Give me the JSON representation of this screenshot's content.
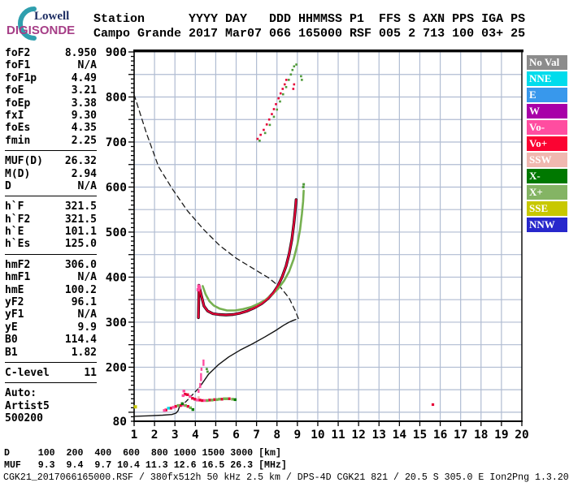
{
  "logo": {
    "top": "Lowell",
    "bottom": "DIGISONDE",
    "arc_color": "#2f9fae"
  },
  "header": {
    "line1": "Station      YYYY DAY   DDD HHMMSS P1  FFS S AXN PPS IGA PS",
    "line2": "Campo Grande 2017 Mar07 066 165000 RSF 005 2 713 100 03+ 25"
  },
  "sidebar": {
    "groups": [
      {
        "rows": [
          {
            "label": "foF2",
            "value": "8.950"
          },
          {
            "label": "foF1",
            "value": "N/A"
          },
          {
            "label": "foF1p",
            "value": "4.49"
          },
          {
            "label": "foE",
            "value": "3.21"
          },
          {
            "label": "foEp",
            "value": "3.38"
          },
          {
            "label": "fxI",
            "value": "9.30"
          },
          {
            "label": "foEs",
            "value": "4.35"
          },
          {
            "label": "fmin",
            "value": "2.25"
          }
        ]
      },
      {
        "rows": [
          {
            "label": "MUF(D)",
            "value": "26.32"
          },
          {
            "label": "M(D)",
            "value": "2.94"
          },
          {
            "label": "D",
            "value": "N/A"
          }
        ]
      },
      {
        "rows": [
          {
            "label": "h`F",
            "value": "321.5"
          },
          {
            "label": "h`F2",
            "value": "321.5"
          },
          {
            "label": "h`E",
            "value": "101.1"
          },
          {
            "label": "h`Es",
            "value": "125.0"
          }
        ]
      },
      {
        "rows": [
          {
            "label": "hmF2",
            "value": "306.0"
          },
          {
            "label": "hmF1",
            "value": "N/A"
          },
          {
            "label": "hmE",
            "value": "100.2"
          },
          {
            "label": "yF2",
            "value": "96.1"
          },
          {
            "label": "yF1",
            "value": "N/A"
          },
          {
            "label": "yE",
            "value": "9.9"
          },
          {
            "label": "B0",
            "value": "114.4"
          },
          {
            "label": "B1",
            "value": "1.82"
          }
        ]
      },
      {
        "rows": [
          {
            "label": "C-level",
            "value": "11"
          }
        ]
      }
    ],
    "footer_lines": [
      "Auto:",
      "Artist5",
      "500200"
    ]
  },
  "legend": {
    "items": [
      {
        "label": "No Val",
        "color": "#8c8c8c"
      },
      {
        "label": "NNE",
        "color": "#00dcec"
      },
      {
        "label": "E",
        "color": "#3898ec"
      },
      {
        "label": "W",
        "color": "#a800a8"
      },
      {
        "label": "Vo-",
        "color": "#ff4da0"
      },
      {
        "label": "Vo+",
        "color": "#fb0332"
      },
      {
        "label": "SSW",
        "color": "#f0b8b0"
      },
      {
        "label": "X-",
        "color": "#007800"
      },
      {
        "label": "X+",
        "color": "#84b464"
      },
      {
        "label": "SSE",
        "color": "#c8c800"
      },
      {
        "label": "NNW",
        "color": "#2828cc"
      }
    ]
  },
  "footer": {
    "d_label": "D",
    "muf_label": "MUF",
    "distances_km": [
      100,
      200,
      400,
      600,
      800,
      1000,
      1500,
      3000
    ],
    "d_unit": "[km]",
    "muf_values_mhz": [
      9.3,
      9.4,
      9.7,
      10.4,
      11.3,
      12.6,
      16.5,
      26.3
    ],
    "muf_unit": "[MHz]",
    "file_line": "CGK21_2017066165000.RSF / 380fx512h 50 kHz 2.5 km / DPS-4D CGK21 821 / 20.5 S 305.0 E Ion2Png 1.3.20"
  },
  "chart_data": {
    "type": "scatter",
    "title": "Digisonde ionogram: virtual height vs frequency",
    "xlabel": "[MHz]",
    "ylabel": "[km]",
    "xlim": [
      1,
      20
    ],
    "ylim": [
      80,
      900
    ],
    "x_ticks": [
      1,
      2,
      3,
      4,
      5,
      6,
      7,
      8,
      9,
      10,
      11,
      12,
      13,
      14,
      15,
      16,
      17,
      18,
      19,
      20
    ],
    "y_major_labels": [
      900,
      800,
      700,
      600,
      500,
      400,
      300,
      200,
      80
    ],
    "y_minor_step": 10,
    "grid": {
      "x_step_mhz": 1,
      "y_step_km": 50,
      "color": "#b0bcd2"
    },
    "series": [
      {
        "name": "muf-transmission-curve",
        "type": "line",
        "color": "#1a1a1a",
        "width": 1.3,
        "dash": "6,4.5",
        "points": [
          [
            1.0,
            805
          ],
          [
            1.6,
            720
          ],
          [
            2.2,
            645
          ],
          [
            2.9,
            594
          ],
          [
            3.6,
            548
          ],
          [
            4.4,
            506
          ],
          [
            5.2,
            470
          ],
          [
            6.0,
            442
          ],
          [
            6.8,
            420
          ],
          [
            7.6,
            398
          ],
          [
            8.2,
            376
          ],
          [
            8.6,
            353
          ],
          [
            8.9,
            325
          ],
          [
            9.05,
            308
          ]
        ]
      },
      {
        "name": "profile-e-region",
        "type": "line",
        "color": "#111",
        "width": 1.4,
        "points": [
          [
            1.0,
            91
          ],
          [
            1.7,
            92
          ],
          [
            2.4,
            93.5
          ],
          [
            2.85,
            95
          ],
          [
            3.05,
            98
          ],
          [
            3.15,
            103
          ],
          [
            3.22,
            112
          ]
        ]
      },
      {
        "name": "profile-valley-dashed",
        "type": "line",
        "color": "#111",
        "width": 1.3,
        "dash": "5,4",
        "points": [
          [
            3.22,
            112
          ],
          [
            3.55,
            124
          ],
          [
            3.9,
            141
          ],
          [
            4.2,
            155
          ]
        ]
      },
      {
        "name": "profile-f-region",
        "type": "line",
        "color": "#111",
        "width": 1.4,
        "points": [
          [
            4.2,
            155
          ],
          [
            4.64,
            184
          ],
          [
            5.12,
            205
          ],
          [
            5.64,
            223
          ],
          [
            6.2,
            238
          ],
          [
            6.8,
            252
          ],
          [
            7.4,
            267
          ],
          [
            7.92,
            281
          ],
          [
            8.32,
            293
          ],
          [
            8.6,
            300
          ],
          [
            8.8,
            304
          ],
          [
            8.92,
            306
          ]
        ]
      },
      {
        "name": "o-trace-outline",
        "type": "line",
        "color": "#1a0a10",
        "width": 3.4,
        "points": [
          [
            4.15,
            310
          ],
          [
            4.17,
            360
          ],
          [
            4.18,
            382
          ],
          [
            4.28,
            362
          ],
          [
            4.42,
            336
          ],
          [
            4.6,
            325
          ],
          [
            4.85,
            319
          ],
          [
            5.15,
            317
          ],
          [
            5.5,
            316
          ],
          [
            5.85,
            317
          ],
          [
            6.2,
            320
          ],
          [
            6.55,
            325
          ],
          [
            6.9,
            332
          ],
          [
            7.25,
            341
          ],
          [
            7.55,
            352
          ],
          [
            7.82,
            365
          ],
          [
            8.05,
            381
          ],
          [
            8.25,
            400
          ],
          [
            8.45,
            425
          ],
          [
            8.6,
            452
          ],
          [
            8.73,
            484
          ],
          [
            8.83,
            520
          ],
          [
            8.9,
            550
          ],
          [
            8.94,
            572
          ]
        ]
      },
      {
        "name": "x-trace-green",
        "type": "line",
        "color": "#76b050",
        "width": 2.6,
        "points": [
          [
            4.36,
            380
          ],
          [
            4.5,
            362
          ],
          [
            4.68,
            347
          ],
          [
            4.9,
            337
          ],
          [
            5.2,
            330
          ],
          [
            5.55,
            326
          ],
          [
            5.95,
            326
          ],
          [
            6.35,
            329
          ],
          [
            6.75,
            334
          ],
          [
            7.1,
            341
          ],
          [
            7.45,
            350
          ],
          [
            7.75,
            361
          ],
          [
            8.05,
            374
          ],
          [
            8.35,
            392
          ],
          [
            8.6,
            413
          ],
          [
            8.82,
            440
          ],
          [
            9.0,
            472
          ],
          [
            9.13,
            505
          ],
          [
            9.22,
            540
          ],
          [
            9.28,
            568
          ],
          [
            9.31,
            592
          ]
        ]
      },
      {
        "name": "x-trace-top-dashes",
        "type": "dots",
        "color": "#4f9a3a",
        "size": 3,
        "points": [
          [
            9.29,
            600
          ],
          [
            9.31,
            606
          ]
        ]
      },
      {
        "name": "o-trace-red",
        "type": "line",
        "color": "#e60038",
        "width": 2.1,
        "points": [
          [
            4.15,
            310
          ],
          [
            4.17,
            360
          ],
          [
            4.18,
            382
          ],
          [
            4.28,
            362
          ],
          [
            4.42,
            336
          ],
          [
            4.6,
            325
          ],
          [
            4.85,
            319
          ],
          [
            5.15,
            317
          ],
          [
            5.5,
            316
          ],
          [
            5.85,
            317
          ],
          [
            6.2,
            320
          ],
          [
            6.55,
            325
          ],
          [
            6.9,
            332
          ],
          [
            7.25,
            341
          ],
          [
            7.55,
            352
          ],
          [
            7.82,
            365
          ],
          [
            8.05,
            381
          ],
          [
            8.25,
            400
          ],
          [
            8.45,
            425
          ],
          [
            8.6,
            452
          ],
          [
            8.73,
            484
          ],
          [
            8.83,
            520
          ],
          [
            8.9,
            550
          ],
          [
            8.94,
            572
          ]
        ]
      },
      {
        "name": "spike-pink-cap",
        "type": "dots",
        "color": "#ff4da0",
        "size": 4,
        "points": [
          [
            4.14,
            372
          ],
          [
            4.17,
            380
          ],
          [
            4.19,
            376
          ]
        ]
      },
      {
        "name": "second-hop-o-dots",
        "type": "dots",
        "color": "#e60038",
        "size": 2.6,
        "points": [
          [
            7.05,
            707
          ],
          [
            7.2,
            716
          ],
          [
            7.35,
            727
          ],
          [
            7.5,
            739
          ],
          [
            7.62,
            750
          ],
          [
            7.75,
            762
          ],
          [
            7.85,
            773
          ],
          [
            7.95,
            784
          ],
          [
            8.08,
            797
          ],
          [
            8.18,
            808
          ],
          [
            8.28,
            818
          ],
          [
            8.38,
            828
          ],
          [
            8.46,
            838
          ],
          [
            8.8,
            818
          ],
          [
            8.84,
            828
          ]
        ]
      },
      {
        "name": "second-hop-x-dots",
        "type": "dots",
        "color": "#4f9a3a",
        "size": 2.6,
        "points": [
          [
            7.15,
            703
          ],
          [
            7.42,
            720
          ],
          [
            7.65,
            738
          ],
          [
            7.85,
            756
          ],
          [
            8.0,
            772
          ],
          [
            8.15,
            790
          ],
          [
            8.3,
            806
          ],
          [
            8.45,
            822
          ],
          [
            8.58,
            838
          ],
          [
            8.68,
            850
          ],
          [
            8.76,
            860
          ],
          [
            8.84,
            868
          ],
          [
            8.95,
            872
          ],
          [
            9.18,
            846
          ],
          [
            9.22,
            838
          ]
        ]
      },
      {
        "name": "es-a-red",
        "type": "dots",
        "color": "#e60038",
        "size": 3.4,
        "points": [
          [
            2.56,
            105
          ],
          [
            2.8,
            109
          ],
          [
            3.04,
            113
          ],
          [
            3.28,
            115
          ],
          [
            3.64,
            113
          ]
        ]
      },
      {
        "name": "es-a-pink",
        "type": "dots",
        "color": "#ff4da0",
        "size": 3.4,
        "points": [
          [
            2.48,
            104
          ],
          [
            2.92,
            111
          ],
          [
            3.4,
            116
          ]
        ]
      },
      {
        "name": "es-a-cyan",
        "type": "dots",
        "color": "#00dcec",
        "size": 3.4,
        "points": [
          [
            2.68,
            109
          ]
        ]
      },
      {
        "name": "es-a-green",
        "type": "dots",
        "color": "#76b050",
        "size": 3.4,
        "points": [
          [
            3.16,
            115
          ],
          [
            3.52,
            115
          ],
          [
            3.76,
            110
          ]
        ]
      },
      {
        "name": "es-a-darkgreen",
        "type": "dots",
        "color": "#007800",
        "size": 3.4,
        "points": [
          [
            3.88,
            106
          ]
        ]
      },
      {
        "name": "es-b-red",
        "type": "dots",
        "color": "#e60038",
        "size": 3.4,
        "points": [
          [
            3.5,
            140
          ],
          [
            3.62,
            139
          ],
          [
            3.86,
            131
          ],
          [
            3.98,
            129
          ],
          [
            4.22,
            127
          ],
          [
            4.34,
            126
          ],
          [
            4.7,
            127
          ],
          [
            4.94,
            128
          ],
          [
            5.3,
            129
          ],
          [
            5.66,
            130
          ]
        ]
      },
      {
        "name": "es-b-pink",
        "type": "dots",
        "color": "#ff4da0",
        "size": 3.4,
        "points": [
          [
            3.4,
            137
          ],
          [
            3.74,
            135
          ],
          [
            4.1,
            127
          ],
          [
            4.46,
            126
          ],
          [
            3.44,
            147
          ]
        ]
      },
      {
        "name": "es-b-green",
        "type": "dots",
        "color": "#76b050",
        "size": 3.4,
        "points": [
          [
            4.58,
            126
          ],
          [
            4.82,
            127
          ],
          [
            5.06,
            128
          ],
          [
            5.18,
            129
          ],
          [
            5.42,
            130
          ],
          [
            5.54,
            130
          ],
          [
            5.82,
            129
          ]
        ]
      },
      {
        "name": "es-b-darkgreen",
        "type": "dots",
        "color": "#007800",
        "size": 3.4,
        "points": [
          [
            3.36,
            119
          ],
          [
            5.95,
            128
          ]
        ]
      },
      {
        "name": "spread-f-pink-segments",
        "type": "vsegs",
        "color": "#ff4da0",
        "width": 2.4,
        "points": [
          [
            4.4,
            217,
            203
          ],
          [
            4.3,
            199,
            192
          ],
          [
            4.28,
            187,
            169
          ],
          [
            4.24,
            165,
            154
          ],
          [
            4.16,
            151,
            143
          ]
        ]
      },
      {
        "name": "spread-f-green-dots",
        "type": "dots",
        "color": "#4f9a3a",
        "size": 2.8,
        "points": [
          [
            4.56,
            196
          ],
          [
            4.6,
            190
          ]
        ]
      },
      {
        "name": "spread-f-lightpink-dot",
        "type": "dots",
        "color": "#f0b8b0",
        "size": 2.8,
        "points": [
          [
            4.16,
            133
          ]
        ]
      },
      {
        "name": "stray-red-dot",
        "type": "dots",
        "color": "#e60038",
        "size": 3.2,
        "points": [
          [
            15.64,
            117
          ]
        ]
      },
      {
        "name": "fmin-axis-mark",
        "type": "dots",
        "color": "#c8c800",
        "size": 4,
        "points": [
          [
            1.06,
            112
          ]
        ]
      }
    ]
  }
}
